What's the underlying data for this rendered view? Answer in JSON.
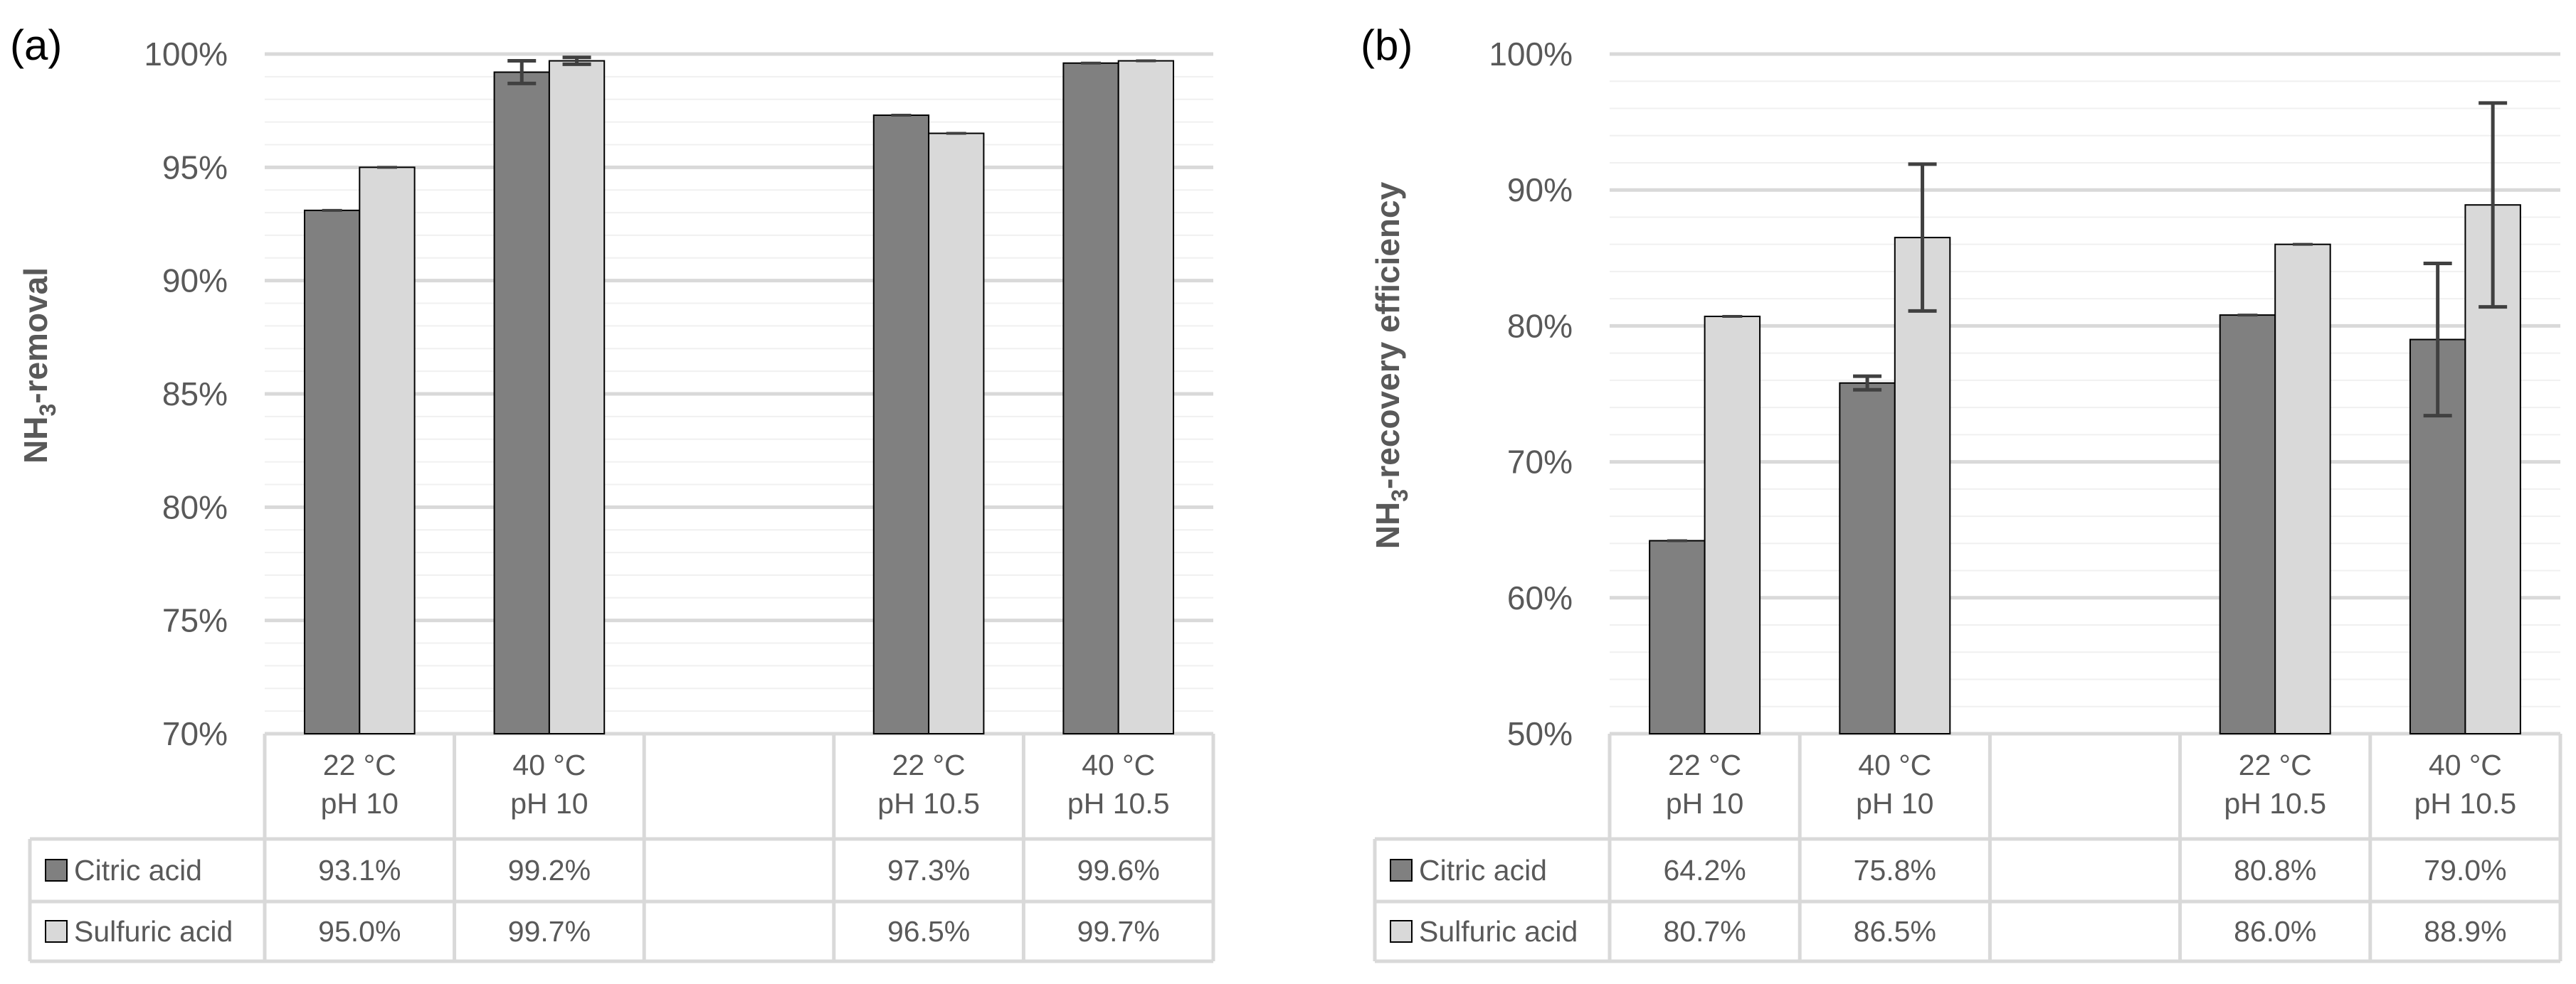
{
  "colors": {
    "citric": "#808080",
    "sulfuric": "#d9d9d9",
    "bar_edge": "#000000",
    "grid_major": "#d9d9d9",
    "grid_minor": "#f0f0f0",
    "table_line": "#d9d9d9",
    "error_bar": "#404040"
  },
  "chart_data": [
    {
      "type": "bar",
      "panel_label": "(a)",
      "ylabel_main": "NH",
      "ylabel_sub": "3",
      "ylabel_rest": "-removal",
      "ylim": [
        70,
        100
      ],
      "major_step": 5,
      "minor_step": 1,
      "ytick_labels": [
        "70%",
        "75%",
        "80%",
        "85%",
        "90%",
        "95%",
        "100%"
      ],
      "categories": [
        {
          "line1": "22 °C",
          "line2": "pH 10"
        },
        {
          "line1": "40 °C",
          "line2": "pH 10"
        },
        {
          "line1": "",
          "line2": ""
        },
        {
          "line1": "22 °C",
          "line2": "pH 10.5"
        },
        {
          "line1": "40 °C",
          "line2": "pH 10.5"
        }
      ],
      "series": [
        {
          "name": "Citric acid",
          "color_key": "citric",
          "values": [
            93.1,
            99.2,
            null,
            97.3,
            99.6
          ],
          "errors": [
            0,
            0.5,
            null,
            0,
            0
          ],
          "labels": [
            "93.1%",
            "99.2%",
            "",
            "97.3%",
            "99.6%"
          ]
        },
        {
          "name": "Sulfuric acid",
          "color_key": "sulfuric",
          "values": [
            95.0,
            99.7,
            null,
            96.5,
            99.7
          ],
          "errors": [
            0,
            0.15,
            null,
            0,
            0
          ],
          "labels": [
            "95.0%",
            "99.7%",
            "",
            "96.5%",
            "99.7%"
          ]
        }
      ]
    },
    {
      "type": "bar",
      "panel_label": "(b)",
      "ylabel_main": "NH",
      "ylabel_sub": "3",
      "ylabel_rest": "-recovery efficiency",
      "ylim": [
        50,
        100
      ],
      "major_step": 10,
      "minor_step": 2,
      "ytick_labels": [
        "50%",
        "60%",
        "70%",
        "80%",
        "90%",
        "100%"
      ],
      "categories": [
        {
          "line1": "22 °C",
          "line2": "pH 10"
        },
        {
          "line1": "40 °C",
          "line2": "pH 10"
        },
        {
          "line1": "",
          "line2": ""
        },
        {
          "line1": "22 °C",
          "line2": "pH 10.5"
        },
        {
          "line1": "40 °C",
          "line2": "pH 10.5"
        }
      ],
      "series": [
        {
          "name": "Citric acid",
          "color_key": "citric",
          "values": [
            64.2,
            75.8,
            null,
            80.8,
            79.0
          ],
          "errors": [
            0,
            0.5,
            null,
            0,
            5.6
          ],
          "labels": [
            "64.2%",
            "75.8%",
            "",
            "80.8%",
            "79.0%"
          ]
        },
        {
          "name": "Sulfuric acid",
          "color_key": "sulfuric",
          "values": [
            80.7,
            86.5,
            null,
            86.0,
            88.9
          ],
          "errors": [
            0,
            5.4,
            null,
            0,
            7.5
          ],
          "labels": [
            "80.7%",
            "86.5%",
            "",
            "86.0%",
            "88.9%"
          ]
        }
      ]
    }
  ]
}
